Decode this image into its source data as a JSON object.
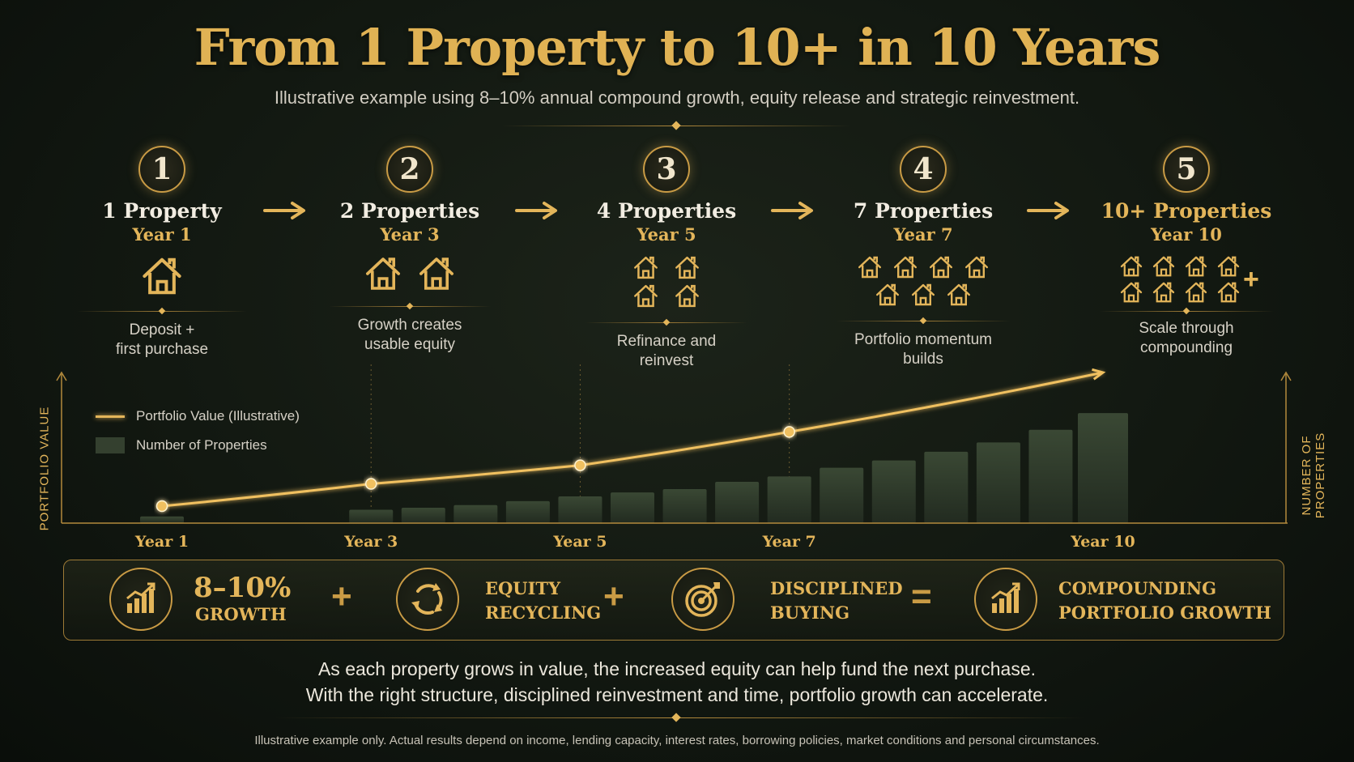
{
  "header": {
    "title": "From 1 Property to 10+ in 10 Years",
    "subtitle": "Illustrative example using 8–10% annual compound growth, equity release and strategic reinvestment."
  },
  "steps": [
    {
      "number": "1",
      "count": "1",
      "word": "Property",
      "year": "Year 1",
      "houses": 1,
      "desc1": "Deposit +",
      "desc2": "first purchase"
    },
    {
      "number": "2",
      "count": "2",
      "word": "Properties",
      "year": "Year 3",
      "houses": 2,
      "desc1": "Growth creates",
      "desc2": "usable equity"
    },
    {
      "number": "3",
      "count": "4",
      "word": "Properties",
      "year": "Year 5",
      "houses": 4,
      "desc1": "Refinance and",
      "desc2": "reinvest"
    },
    {
      "number": "4",
      "count": "7",
      "word": "Properties",
      "year": "Year 7",
      "houses": 7,
      "desc1": "Portfolio momentum",
      "desc2": "builds"
    },
    {
      "number": "5",
      "count": "10+",
      "word": "Properties",
      "year": "Year 10",
      "houses": 8,
      "desc1": "Scale through",
      "desc2": "compounding"
    }
  ],
  "chart_data": {
    "type": "bar",
    "xlabel": "",
    "ylabel": "PORTFOLIO VALUE",
    "y2label": "NUMBER OF PROPERTIES",
    "tick_labels": [
      "Year 1",
      "Year 3",
      "Year 5",
      "Year 7",
      "Year 10"
    ],
    "legend": {
      "placement": "top-left",
      "entries": [
        "Portfolio Value (Illustrative)",
        "Number of Properties"
      ]
    },
    "series": [
      {
        "name": "Number of Properties",
        "kind": "bar",
        "x": [
          1,
          3,
          3.5,
          4,
          4.5,
          5,
          5.5,
          6,
          6.5,
          7,
          7.5,
          8,
          8.5,
          9,
          9.5,
          10
        ],
        "values": [
          1,
          2,
          2.3,
          2.7,
          3.3,
          4,
          4.6,
          5.1,
          6.2,
          7,
          8.3,
          9.4,
          10.7,
          12.1,
          14,
          16.5
        ]
      },
      {
        "name": "Portfolio Value (Illustrative)",
        "kind": "line",
        "x": [
          1,
          3,
          5,
          7,
          10
        ],
        "values": [
          4,
          7,
          9.5,
          14,
          22
        ],
        "markers_at": [
          1,
          3,
          5,
          7
        ]
      }
    ],
    "grid": false
  },
  "formula": {
    "growth_pct": "8–10%",
    "growth_label": "GROWTH",
    "equity_line1": "EQUITY",
    "equity_line2": "RECYCLING",
    "disciplined_line1": "DISCIPLINED",
    "disciplined_line2": "BUYING",
    "result_line1": "COMPOUNDING",
    "result_line2": "PORTFOLIO GROWTH",
    "plus": "+",
    "equals": "="
  },
  "closing": {
    "line1": "As each property grows in value, the increased equity can help fund the next purchase.",
    "line2": "With the right structure, disciplined reinvestment and time, portfolio growth can accelerate."
  },
  "disclaimer": "Illustrative example only. Actual results depend on income, lending capacity, interest rates, borrowing policies, market conditions and personal circumstances.",
  "colors": {
    "gold": "#e3b55a",
    "bar": "#2e3a2a",
    "background": "#121811"
  }
}
